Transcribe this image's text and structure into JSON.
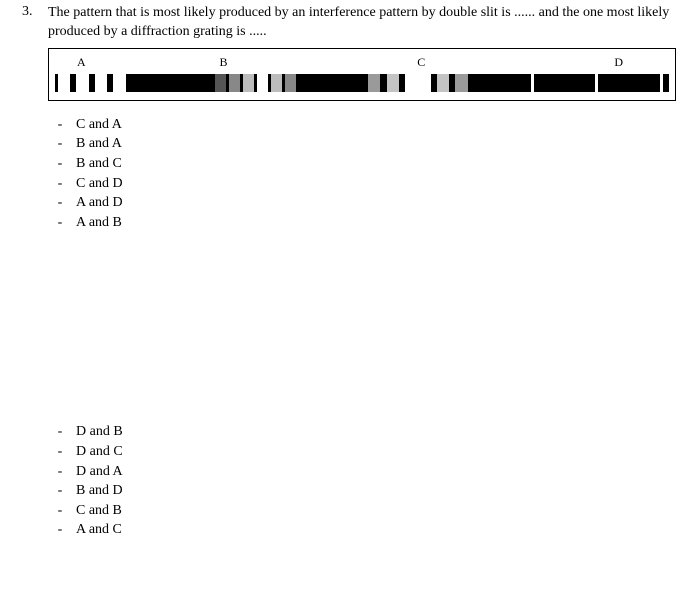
{
  "question": {
    "number": "3.",
    "text": "The pattern that is most likely produced by an interference pattern by double slit is ...... and the one most likely produced by a diffraction grating is ....."
  },
  "pattern_labels": [
    "A",
    "B",
    "C",
    "D"
  ],
  "patternStripBackground": "#000000",
  "patterns": {
    "A": {
      "segments": [
        {
          "left_pct": 0.5,
          "width_pct": 2.0,
          "color": "#ffffff"
        },
        {
          "left_pct": 3.5,
          "width_pct": 2.0,
          "color": "#ffffff"
        },
        {
          "left_pct": 6.5,
          "width_pct": 2.0,
          "color": "#ffffff"
        },
        {
          "left_pct": 9.5,
          "width_pct": 2.0,
          "color": "#ffffff"
        }
      ]
    },
    "B": {
      "segments": [
        {
          "left_pct": 26.0,
          "width_pct": 1.8,
          "color": "#555555"
        },
        {
          "left_pct": 28.3,
          "width_pct": 1.8,
          "color": "#888888"
        },
        {
          "left_pct": 30.6,
          "width_pct": 1.8,
          "color": "#bcbcbc"
        },
        {
          "left_pct": 32.9,
          "width_pct": 1.8,
          "color": "#ffffff"
        },
        {
          "left_pct": 35.2,
          "width_pct": 1.8,
          "color": "#bcbcbc"
        },
        {
          "left_pct": 37.5,
          "width_pct": 1.8,
          "color": "#888888"
        }
      ]
    },
    "C": {
      "segments": [
        {
          "left_pct": 51.0,
          "width_pct": 2.0,
          "color": "#9a9a9a"
        },
        {
          "left_pct": 54.0,
          "width_pct": 2.0,
          "color": "#c4c4c4"
        },
        {
          "left_pct": 57.0,
          "width_pct": 4.2,
          "color": "#ffffff"
        },
        {
          "left_pct": 62.2,
          "width_pct": 2.0,
          "color": "#c4c4c4"
        },
        {
          "left_pct": 65.2,
          "width_pct": 2.0,
          "color": "#9a9a9a"
        }
      ]
    },
    "D": {
      "segments": [
        {
          "left_pct": 77.5,
          "width_pct": 0.45,
          "color": "#ffffff"
        },
        {
          "left_pct": 88.0,
          "width_pct": 0.45,
          "color": "#ffffff"
        },
        {
          "left_pct": 98.5,
          "width_pct": 0.45,
          "color": "#ffffff"
        }
      ]
    }
  },
  "options_group1": [
    "C and A",
    "B and A",
    "B and C",
    "C and D",
    "A and D",
    "A and B"
  ],
  "options_group2": [
    "D and B",
    "D and C",
    "D and A",
    "B and D",
    "C and B",
    "A and C"
  ]
}
